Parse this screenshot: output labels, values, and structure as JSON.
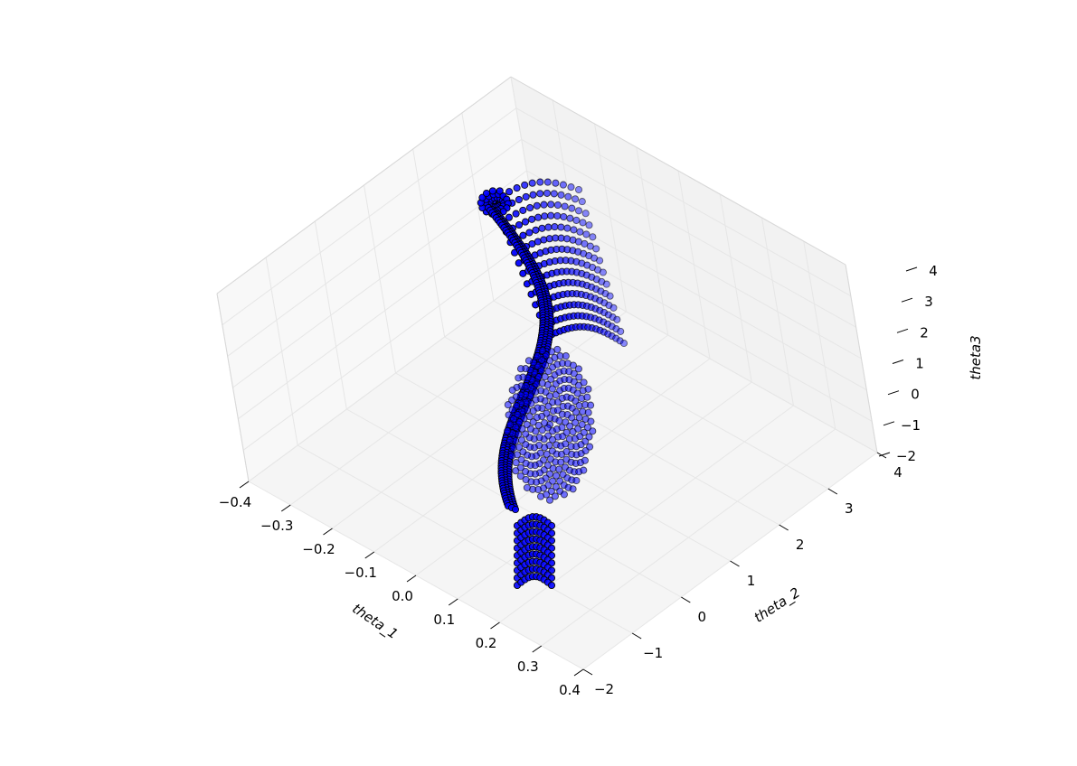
{
  "chart_data": {
    "type": "scatter",
    "projection": "3d",
    "title": "",
    "xlabel": "theta_1",
    "ylabel": "theta_2",
    "zlabel": "theta3",
    "xlim": [
      -0.4,
      0.4
    ],
    "ylim": [
      -2,
      4
    ],
    "zlim": [
      -2,
      4
    ],
    "xticks": [
      "−0.4",
      "−0.3",
      "−0.2",
      "−0.1",
      "0.0",
      "0.1",
      "0.2",
      "0.3",
      "0.4"
    ],
    "yticks": [
      "−2",
      "−1",
      "0",
      "1",
      "2",
      "3",
      "4"
    ],
    "zticks": [
      "−2",
      "−1",
      "0",
      "1",
      "2",
      "3",
      "4"
    ],
    "grid": true,
    "marker_color": "#0000ff",
    "marker_edge_color": "#000000",
    "pane_color": "#f2f2f2",
    "grid_color": "#e6e6e6"
  }
}
